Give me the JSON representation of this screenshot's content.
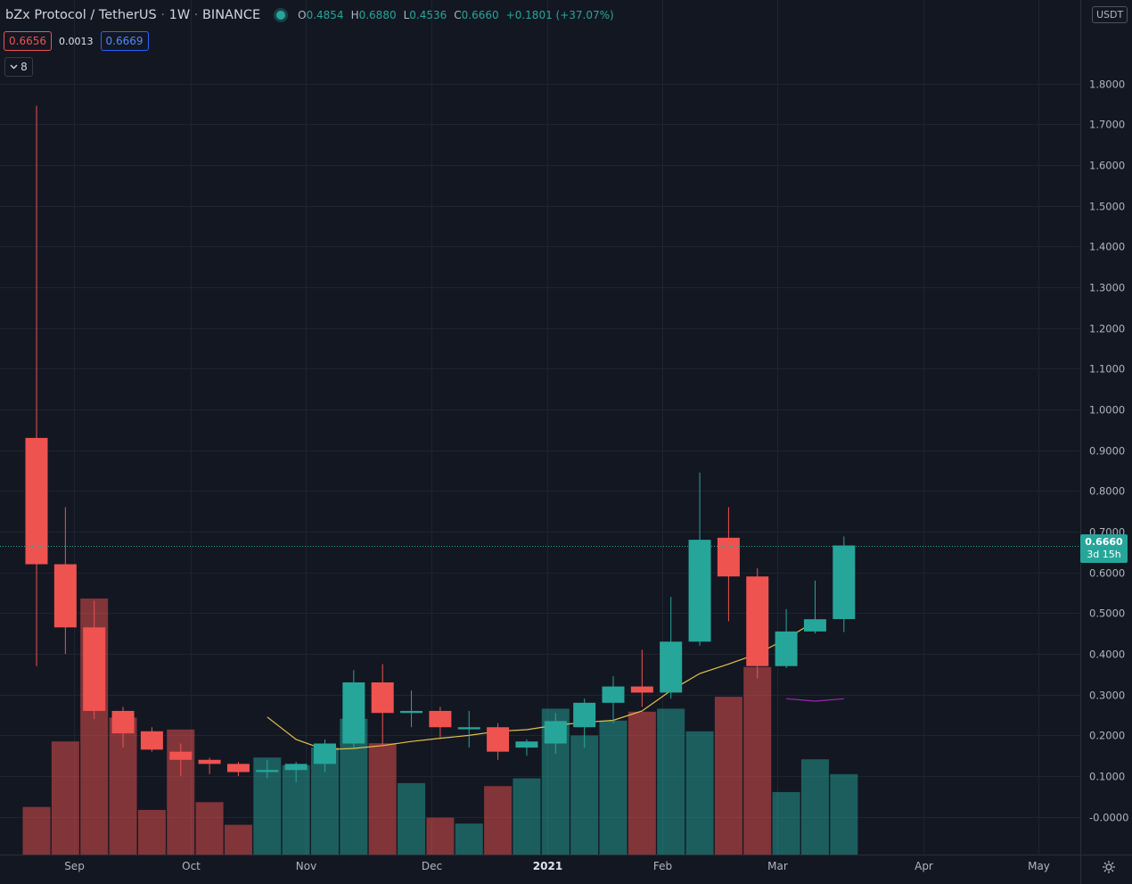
{
  "header": {
    "symbol": "bZx Protocol / TetherUS",
    "interval": "1W",
    "exchange": "BINANCE",
    "ohlc": {
      "o_label": "O",
      "o": "0.4854",
      "h_label": "H",
      "h": "0.6880",
      "l_label": "L",
      "l": "0.4536",
      "c_label": "C",
      "c": "0.6660",
      "change": "+0.1801 (+37.07%)"
    }
  },
  "trade": {
    "sell": "0.6656",
    "spread": "0.0013",
    "buy": "0.6669"
  },
  "indicator_toggle": {
    "count": "8",
    "icon": "chevron-down-icon"
  },
  "currency": "USDT",
  "last_price": {
    "price": "0.6660",
    "countdown": "3d 15h"
  },
  "colors": {
    "up": "#26a69a",
    "down": "#ef5350",
    "ma": "#e3c449",
    "ma2": "#9c27b0",
    "bg": "#131722",
    "grid": "#1f2431"
  },
  "chart_data": {
    "type": "candlestick",
    "y_axis": {
      "min": -0.075,
      "max": 1.95,
      "ticks": [
        -0.0,
        0.1,
        0.2,
        0.3,
        0.4,
        0.5,
        0.6,
        0.7,
        0.8,
        0.9,
        1.0,
        1.1,
        1.2,
        1.3,
        1.4,
        1.5,
        1.6,
        1.7,
        1.8
      ],
      "tick_labels": [
        "-0.0000",
        "0.1000",
        "0.2000",
        "0.3000",
        "0.4000",
        "0.5000",
        "0.6000",
        "0.7000",
        "0.8000",
        "0.9000",
        "1.0000",
        "1.1000",
        "1.2000",
        "1.3000",
        "1.4000",
        "1.5000",
        "1.6000",
        "1.7000",
        "1.8000"
      ]
    },
    "x_axis": {
      "labels": [
        {
          "text": "Sep",
          "week": 1.3,
          "bold": false
        },
        {
          "text": "Oct",
          "week": 5.35,
          "bold": false
        },
        {
          "text": "Nov",
          "week": 9.35,
          "bold": false
        },
        {
          "text": "Dec",
          "week": 13.7,
          "bold": false
        },
        {
          "text": "2021",
          "week": 17.7,
          "bold": true
        },
        {
          "text": "Feb",
          "week": 21.7,
          "bold": false
        },
        {
          "text": "Mar",
          "week": 25.7,
          "bold": false
        },
        {
          "text": "Apr",
          "week": 30.75,
          "bold": false
        },
        {
          "text": "May",
          "week": 34.75,
          "bold": false
        }
      ]
    },
    "candles": [
      {
        "o": 0.93,
        "h": 1.745,
        "l": 0.37,
        "c": 0.62
      },
      {
        "o": 0.62,
        "h": 0.76,
        "l": 0.4,
        "c": 0.465
      },
      {
        "o": 0.465,
        "h": 0.53,
        "l": 0.24,
        "c": 0.26
      },
      {
        "o": 0.26,
        "h": 0.27,
        "l": 0.17,
        "c": 0.205
      },
      {
        "o": 0.21,
        "h": 0.22,
        "l": 0.16,
        "c": 0.165
      },
      {
        "o": 0.16,
        "h": 0.18,
        "l": 0.1,
        "c": 0.14
      },
      {
        "o": 0.14,
        "h": 0.145,
        "l": 0.105,
        "c": 0.13
      },
      {
        "o": 0.13,
        "h": 0.135,
        "l": 0.1,
        "c": 0.11
      },
      {
        "o": 0.11,
        "h": 0.14,
        "l": 0.095,
        "c": 0.115
      },
      {
        "o": 0.115,
        "h": 0.135,
        "l": 0.085,
        "c": 0.13
      },
      {
        "o": 0.13,
        "h": 0.19,
        "l": 0.11,
        "c": 0.18
      },
      {
        "o": 0.18,
        "h": 0.36,
        "l": 0.17,
        "c": 0.33
      },
      {
        "o": 0.33,
        "h": 0.375,
        "l": 0.175,
        "c": 0.255
      },
      {
        "o": 0.255,
        "h": 0.31,
        "l": 0.22,
        "c": 0.26
      },
      {
        "o": 0.26,
        "h": 0.27,
        "l": 0.195,
        "c": 0.22
      },
      {
        "o": 0.215,
        "h": 0.26,
        "l": 0.17,
        "c": 0.22
      },
      {
        "o": 0.22,
        "h": 0.23,
        "l": 0.14,
        "c": 0.16
      },
      {
        "o": 0.17,
        "h": 0.19,
        "l": 0.15,
        "c": 0.185
      },
      {
        "o": 0.18,
        "h": 0.255,
        "l": 0.155,
        "c": 0.235
      },
      {
        "o": 0.22,
        "h": 0.29,
        "l": 0.17,
        "c": 0.28
      },
      {
        "o": 0.28,
        "h": 0.345,
        "l": 0.23,
        "c": 0.32
      },
      {
        "o": 0.32,
        "h": 0.41,
        "l": 0.27,
        "c": 0.305
      },
      {
        "o": 0.305,
        "h": 0.54,
        "l": 0.29,
        "c": 0.43
      },
      {
        "o": 0.43,
        "h": 0.845,
        "l": 0.42,
        "c": 0.68
      },
      {
        "o": 0.685,
        "h": 0.76,
        "l": 0.48,
        "c": 0.59
      },
      {
        "o": 0.59,
        "h": 0.61,
        "l": 0.34,
        "c": 0.37
      },
      {
        "o": 0.37,
        "h": 0.51,
        "l": 0.365,
        "c": 0.455
      },
      {
        "o": 0.455,
        "h": 0.58,
        "l": 0.45,
        "c": 0.485
      },
      {
        "o": 0.4854,
        "h": 0.688,
        "l": 0.4536,
        "c": 0.666
      }
    ],
    "volume": {
      "scale_max": 0.4,
      "values": [
        0.08,
        0.19,
        0.43,
        0.23,
        0.075,
        0.21,
        0.088,
        0.05,
        0.163,
        0.15,
        0.18,
        0.228,
        0.187,
        0.12,
        0.062,
        0.052,
        0.115,
        0.128,
        0.245,
        0.2,
        0.225,
        0.24,
        0.245,
        0.207,
        0.265,
        0.315,
        0.105,
        0.16,
        0.135
      ]
    },
    "moving_average": {
      "start_week": 8,
      "values": [
        0.245,
        0.19,
        0.165,
        0.168,
        0.175,
        0.185,
        0.193,
        0.2,
        0.21,
        0.214,
        0.225,
        0.232,
        0.237,
        0.26,
        0.31,
        0.352,
        0.375,
        0.4,
        0.437,
        0.48
      ]
    },
    "moving_average_2": {
      "start_week": 26,
      "values": [
        0.29,
        0.284,
        0.29
      ]
    }
  }
}
